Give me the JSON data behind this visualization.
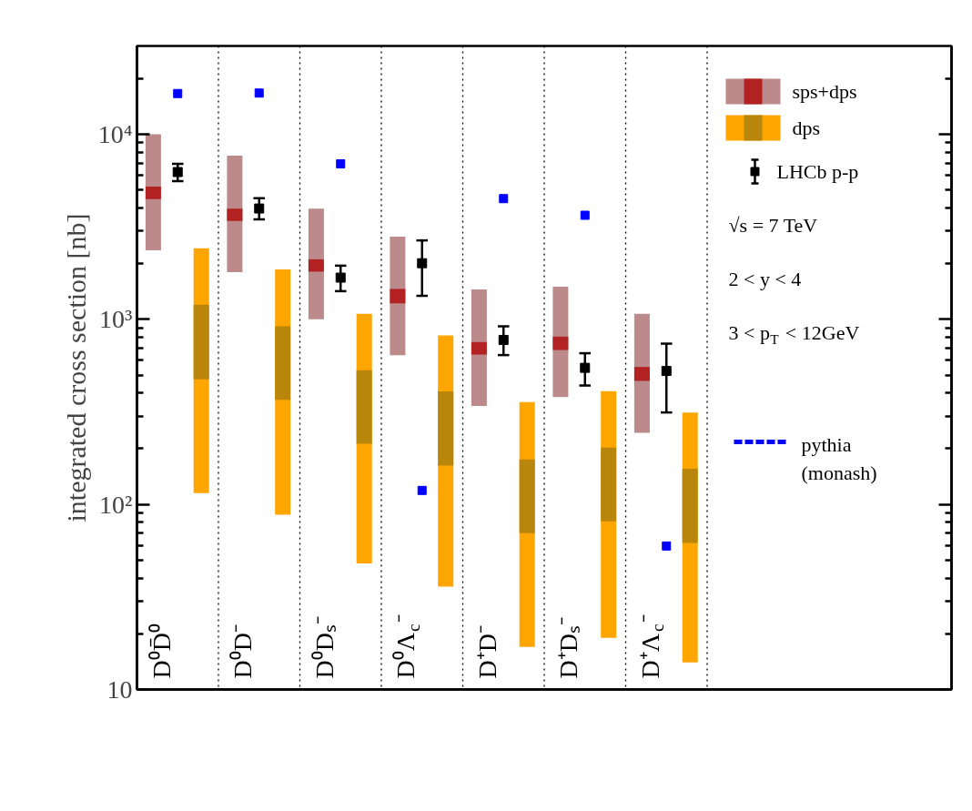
{
  "chart_data": {
    "type": "bar",
    "ylabel": "integrated cross section [nb]",
    "categories": [
      "D⁰D̄⁰",
      "D⁰D⁻",
      "D⁰Dₛ⁻",
      "D⁰Λ$_{c}$⁻",
      "D⁺D⁻",
      "D⁺Dₛ⁻",
      "D⁺Λ$_{c}$⁻"
    ],
    "ylim": [
      10,
      30000
    ],
    "log": "y",
    "yticks": [
      {
        "value": 10,
        "label": "10"
      },
      {
        "value": 100,
        "label": "10²"
      },
      {
        "value": 1000,
        "label": "10³"
      },
      {
        "value": 10000,
        "label": "10⁴"
      }
    ],
    "tick_labels": "y",
    "legend": "top right",
    "annotations": [
      "√s = 7 TeV",
      "2 < y < 4",
      "3 < p$_{T}$ < 12GeV"
    ],
    "series": [
      {
        "name": "sps+dps",
        "color": "#bc8a8a",
        "base": [
          2360,
          1800,
          1000,
          640,
          340,
          380,
          244
        ],
        "values": [
          7640,
          5870,
          2960,
          2160,
          1110,
          1120,
          826
        ]
      },
      {
        "color": "#b22222",
        "base": [
          4460,
          3400,
          1810,
          1220,
          645,
          683,
          465
        ],
        "values": [
          750,
          560,
          300,
          240,
          109,
          124,
          88
        ]
      },
      {
        "name": "dps",
        "color": "#ffa500",
        "base": [
          115,
          88,
          48,
          36,
          17,
          19,
          14
        ],
        "values": [
          2305,
          1772,
          1022,
          783,
          340,
          390,
          300
        ]
      },
      {
        "color": "#b8860b",
        "base": [
          474,
          367,
          213,
          162,
          70,
          81,
          62
        ],
        "values": [
          726,
          550,
          318,
          246,
          105,
          122,
          94
        ]
      },
      {
        "name": "LHCb p-p",
        "type": "scatter",
        "marker": "square",
        "color": "#000000",
        "values": [
          6250,
          3970,
          1680,
          2010,
          774,
          547,
          526
        ],
        "errors": [
          [
            5580,
            6920
          ],
          [
            3470,
            4520
          ],
          [
            1420,
            1950
          ],
          [
            1340,
            2670
          ],
          [
            641,
            917
          ],
          [
            439,
            656
          ],
          [
            314,
            739
          ]
        ]
      },
      {
        "name": "pythia (monash)",
        "type": "scatter",
        "marker": "square",
        "line_style": "dashed",
        "color": "#0000ff",
        "values": [
          16600,
          16700,
          6920,
          119,
          4490,
          3650,
          59.6
        ]
      }
    ]
  }
}
